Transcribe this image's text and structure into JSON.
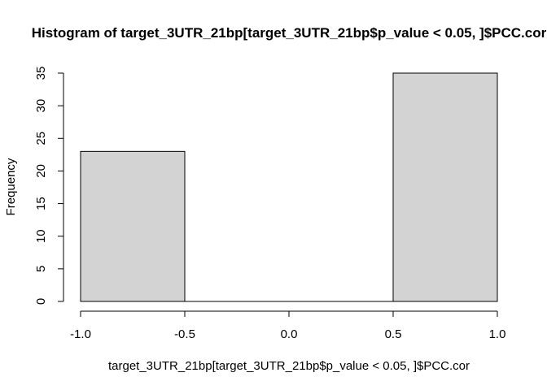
{
  "chart_data": {
    "type": "bar",
    "subtype": "histogram",
    "title": "Histogram of target_3UTR_21bp[target_3UTR_21bp$p_value < 0.05, ]$PCC.cor",
    "xlabel": "target_3UTR_21bp[target_3UTR_21bp$p_value < 0.05, ]$PCC.cor",
    "ylabel": "Frequency",
    "bins": [
      {
        "from": -1.0,
        "to": -0.5,
        "value": 23
      },
      {
        "from": -0.5,
        "to": 0.0,
        "value": 0
      },
      {
        "from": 0.0,
        "to": 0.5,
        "value": 0
      },
      {
        "from": 0.5,
        "to": 1.0,
        "value": 35
      }
    ],
    "xlim": [
      -1.0,
      1.0
    ],
    "ylim": [
      0,
      35
    ],
    "x_ticks": [
      -1.0,
      -0.5,
      0.0,
      0.5,
      1.0
    ],
    "x_tick_labels": [
      "-1.0",
      "-0.5",
      "0.0",
      "0.5",
      "1.0"
    ],
    "y_ticks": [
      0,
      5,
      10,
      15,
      20,
      25,
      30,
      35
    ],
    "y_tick_labels": [
      "0",
      "5",
      "10",
      "15",
      "20",
      "25",
      "30",
      "35"
    ],
    "grid": false,
    "legend": "none",
    "colors": {
      "bar_fill": "#d3d3d3",
      "bar_stroke": "#000000",
      "axis": "#000000"
    }
  }
}
